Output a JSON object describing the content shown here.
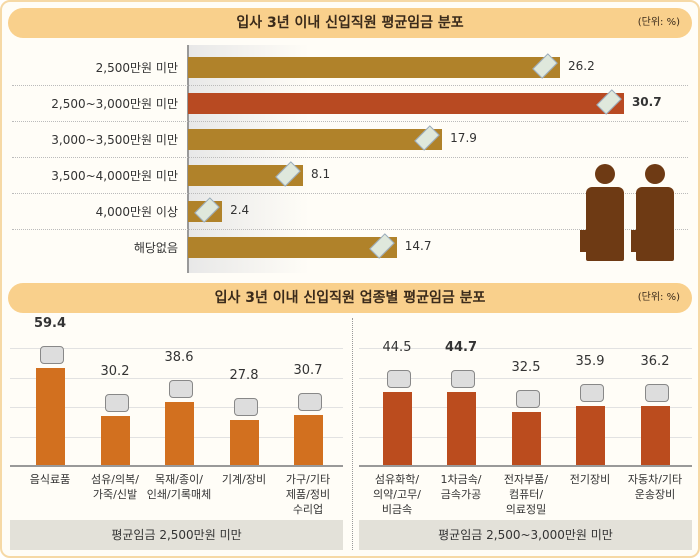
{
  "top": {
    "title": "입사 3년 이내 신입직원 평균임금 분포",
    "unit": "(단위: %)",
    "chart_data": {
      "type": "bar",
      "orientation": "horizontal",
      "categories": [
        "2,500만원 미만",
        "2,500~3,000만원 미만",
        "3,000~3,500만원 미만",
        "3,500~4,000만원 미만",
        "4,000만원 이상",
        "해당없음"
      ],
      "values": [
        26.2,
        30.7,
        17.9,
        8.1,
        2.4,
        14.7
      ],
      "labels": [
        "26.2",
        "30.7",
        "17.9",
        "8.1",
        "2.4",
        "14.7"
      ],
      "highlight_index": 1,
      "colors": {
        "normal": "#b0822a",
        "highlight": "#b84a22"
      }
    }
  },
  "bottom": {
    "title": "입사 3년 이내 신입직원 업종별 평균임금 분포",
    "unit": "(단위: %)",
    "chart_data": [
      {
        "type": "bar",
        "group": "평균임금 2,500만원 미만",
        "categories": [
          "음식료품",
          "섬유/의복/\n가죽/신발",
          "목재/종이/\n인쇄/기록매체",
          "기계/장비",
          "가구/기타\n제품/정비\n수리업"
        ],
        "values": [
          59.4,
          30.2,
          38.6,
          27.8,
          30.7
        ],
        "labels": [
          "59.4",
          "30.2",
          "38.6",
          "27.8",
          "30.7"
        ],
        "color": "#d2701f"
      },
      {
        "type": "bar",
        "group": "평균임금 2,500~3,000만원 미만",
        "categories": [
          "섬유화학/\n의약/고무/\n비금속",
          "1차금속/\n금속가공",
          "전자부품/\n컴퓨터/\n의료정밀",
          "전기장비",
          "자동차/기타\n운송장비"
        ],
        "values": [
          44.5,
          44.7,
          32.5,
          35.9,
          36.2
        ],
        "labels": [
          "44.5",
          "44.7",
          "32.5",
          "35.9",
          "36.2"
        ],
        "color": "#bb4c1e"
      }
    ]
  }
}
